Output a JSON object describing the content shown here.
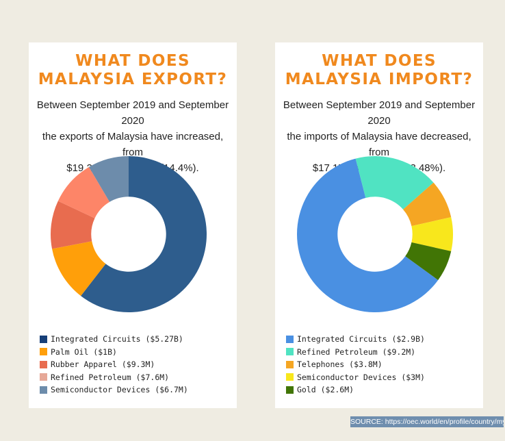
{
  "colors": {
    "background": "#efece2",
    "title": "#f0891e",
    "source_bar": "#6f8eae"
  },
  "export": {
    "title_line1": "WHAT DOES",
    "title_line2": "MALAYSIA EXPORT?",
    "desc_line1": "Between September 2019 and September 2020",
    "desc_line2": "the exports of Malaysia have increased, from",
    "desc_line3": "$19.22B to $21.99B (14.4%).",
    "legend": [
      {
        "label": "Integrated Circuits ($5.27B)",
        "color": "#173f78"
      },
      {
        "label": "Palm Oil ($1B)",
        "color": "#ff9f0a"
      },
      {
        "label": "Rubber Apparel ($9.3M)",
        "color": "#e86c4f"
      },
      {
        "label": "Refined Petroleum ($7.6M)",
        "color": "#e6a898"
      },
      {
        "label": "Semiconductor Devices ($6.7M)",
        "color": "#6d8cab"
      }
    ]
  },
  "import": {
    "title_line1": "WHAT DOES",
    "title_line2": "MALAYSIA IMPORT?",
    "desc_line1": "Between September 2019 and September 2020",
    "desc_line2": "the imports of Malaysia have decreased, from",
    "desc_line3": "$17.17Bto $16.57B (-3.48%).",
    "legend": [
      {
        "label": "Integrated Circuits ($2.9B)",
        "color": "#4a90e2"
      },
      {
        "label": "Refined Petroleum ($9.2M)",
        "color": "#50e3c2"
      },
      {
        "label": "Telephones ($3.8M)",
        "color": "#f5a623"
      },
      {
        "label": "Semiconductor Devices ($3M)",
        "color": "#f8e71c"
      },
      {
        "label": "Gold ($2.6M)",
        "color": "#417505"
      }
    ]
  },
  "source": "SOURCE: https://oec.world/en/profile/country/mys",
  "chart_data": [
    {
      "type": "pie",
      "title": "WHAT DOES MALAYSIA EXPORT?",
      "categories": [
        "Integrated Circuits",
        "Palm Oil",
        "Rubber Apparel",
        "Refined Petroleum",
        "Semiconductor Devices"
      ],
      "values": [
        60.5,
        11.5,
        10,
        9.5,
        8.5
      ],
      "colors": [
        "#2e5d8d",
        "#ff9f0a",
        "#e86c4f",
        "#fd8568",
        "#6d8cab"
      ],
      "inner_radius_ratio": 0.48,
      "start_angle_deg": 0,
      "legend_position": "bottom"
    },
    {
      "type": "pie",
      "title": "WHAT DOES MALAYSIA IMPORT?",
      "categories": [
        "Integrated Circuits",
        "Refined Petroleum",
        "Telephones",
        "Semiconductor Devices",
        "Gold"
      ],
      "values": [
        61,
        17.5,
        8,
        7,
        6.5
      ],
      "colors": [
        "#4a90e2",
        "#50e3c2",
        "#f5a623",
        "#f8e71c",
        "#417505"
      ],
      "inner_radius_ratio": 0.48,
      "start_angle_deg": 126,
      "legend_position": "bottom"
    }
  ]
}
